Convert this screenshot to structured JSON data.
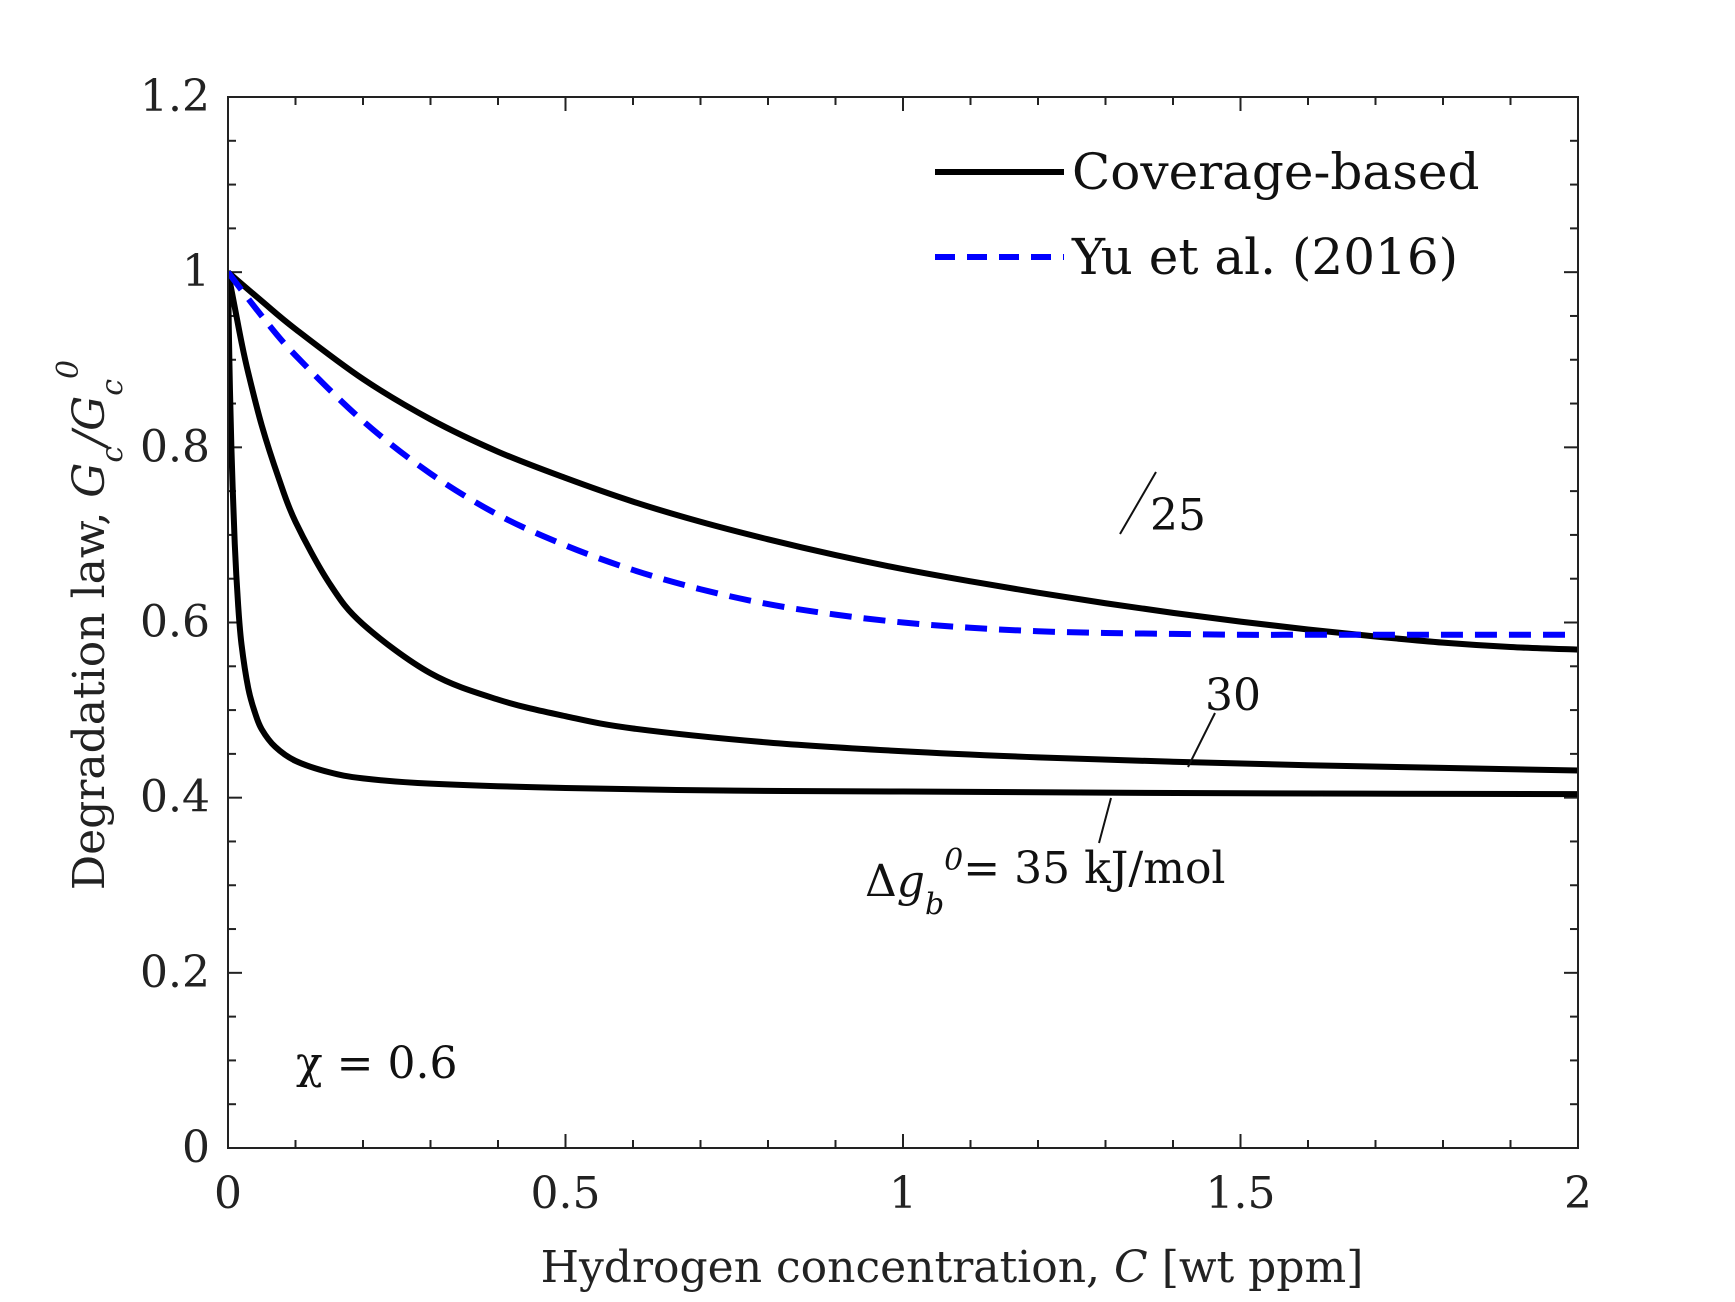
{
  "colors": {
    "coverage": "#000000",
    "yu": "#0000ff",
    "axis": "#222222"
  },
  "chart_data": {
    "type": "line",
    "xlabel": {
      "prefix": "Hydrogen concentration, ",
      "symbol": "C",
      "unit": " [wt ppm]"
    },
    "ylabel": {
      "prefix": "Degradation law, ",
      "symbol": "Gc/Gc0"
    },
    "xlim": [
      0,
      2
    ],
    "ylim": [
      0,
      1.2
    ],
    "xticks": [
      0,
      0.5,
      1,
      1.5,
      2
    ],
    "xtick_labels": [
      "0",
      "0.5",
      "1",
      "1.5",
      "2"
    ],
    "yticks": [
      0,
      0.2,
      0.4,
      0.6,
      0.8,
      1,
      1.2
    ],
    "ytick_labels": [
      "0",
      "0.2",
      "0.4",
      "0.6",
      "0.8",
      "1",
      "1.2"
    ],
    "grid": false,
    "legend_position": "top-right",
    "legend": [
      {
        "label": "Coverage-based",
        "style": "solid",
        "color": "#000000"
      },
      {
        "label": "Yu et al. (2016)",
        "style": "dashed",
        "color": "#0000ff"
      }
    ],
    "series": [
      {
        "group": "Coverage-based",
        "annotation": "25",
        "x": [
          0,
          0.05,
          0.1,
          0.2,
          0.3,
          0.4,
          0.5,
          0.6,
          0.7,
          0.8,
          0.9,
          1.0,
          1.1,
          1.2,
          1.3,
          1.4,
          1.5,
          1.6,
          1.7,
          1.8,
          1.9,
          2.0
        ],
        "y": [
          1.0,
          0.967,
          0.935,
          0.878,
          0.832,
          0.795,
          0.765,
          0.738,
          0.715,
          0.695,
          0.677,
          0.661,
          0.647,
          0.634,
          0.622,
          0.611,
          0.601,
          0.592,
          0.584,
          0.577,
          0.572,
          0.569
        ]
      },
      {
        "group": "Coverage-based",
        "annotation": "30",
        "x": [
          0,
          0.01,
          0.02,
          0.03,
          0.05,
          0.075,
          0.1,
          0.15,
          0.2,
          0.3,
          0.4,
          0.5,
          0.6,
          0.8,
          1.0,
          1.2,
          1.4,
          1.6,
          1.8,
          2.0
        ],
        "y": [
          1.0,
          0.96,
          0.92,
          0.885,
          0.825,
          0.765,
          0.715,
          0.645,
          0.598,
          0.542,
          0.512,
          0.493,
          0.479,
          0.463,
          0.453,
          0.446,
          0.441,
          0.437,
          0.434,
          0.431
        ]
      },
      {
        "group": "Coverage-based",
        "annotation": "35 kJ/mol",
        "x": [
          0,
          0.002,
          0.005,
          0.01,
          0.015,
          0.02,
          0.03,
          0.04,
          0.05,
          0.07,
          0.1,
          0.15,
          0.2,
          0.3,
          0.5,
          0.75,
          1.0,
          1.5,
          2.0
        ],
        "y": [
          1.0,
          0.9,
          0.8,
          0.69,
          0.62,
          0.575,
          0.525,
          0.497,
          0.478,
          0.458,
          0.442,
          0.429,
          0.422,
          0.416,
          0.411,
          0.408,
          0.407,
          0.405,
          0.404
        ]
      },
      {
        "group": "Yu et al. (2016)",
        "x": [
          0,
          0.05,
          0.1,
          0.2,
          0.3,
          0.4,
          0.5,
          0.6,
          0.7,
          0.8,
          0.9,
          1.0,
          1.1,
          1.2,
          1.3,
          1.4,
          1.5,
          1.6,
          1.7,
          1.8,
          1.9,
          2.0
        ],
        "y": [
          1.0,
          0.95,
          0.905,
          0.83,
          0.77,
          0.723,
          0.688,
          0.66,
          0.638,
          0.621,
          0.609,
          0.6,
          0.594,
          0.59,
          0.588,
          0.587,
          0.586,
          0.586,
          0.586,
          0.586,
          0.586,
          0.586
        ]
      }
    ],
    "annotations": {
      "chi": "χ = 0.6",
      "delta_g_tail": "= 35 kJ/mol",
      "label_25": "25",
      "label_30": "30"
    }
  }
}
